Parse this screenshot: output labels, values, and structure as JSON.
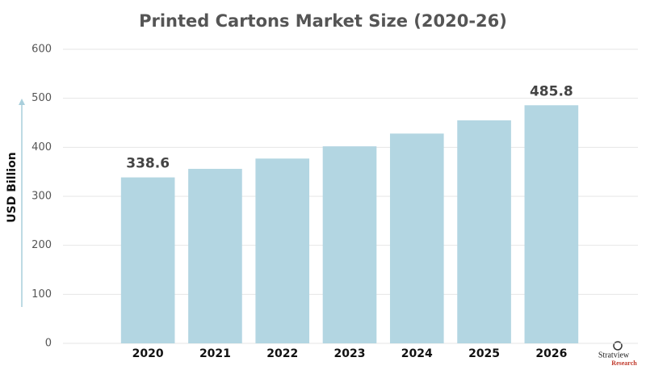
{
  "chart_data": {
    "type": "bar",
    "title": "Printed Cartons Market Size (2020-26)",
    "y_label": "USD Billion",
    "categories": [
      "2020",
      "2021",
      "2022",
      "2023",
      "2024",
      "2025",
      "2026"
    ],
    "values": [
      338.6,
      356,
      377,
      402,
      428,
      455,
      485.8
    ],
    "value_labels": [
      "338.6",
      null,
      null,
      null,
      null,
      null,
      "485.8"
    ],
    "color": "#b3d6e2",
    "ylim": [
      0,
      600
    ],
    "yticks": [
      0,
      100,
      200,
      300,
      400,
      500,
      600
    ],
    "grid": true
  },
  "logo": {
    "name": "Stratview",
    "sub": "Research"
  }
}
